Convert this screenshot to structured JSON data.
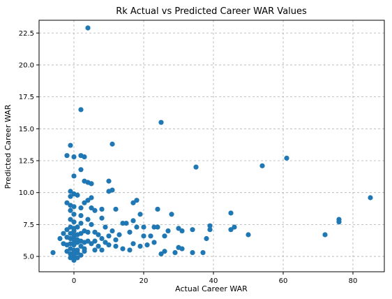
{
  "chart_data": {
    "type": "scatter",
    "title": "Rk Actual vs Predicted Career WAR Values",
    "xlabel": "Actual Career WAR",
    "ylabel": "Predicted Career WAR",
    "xlim": [
      -10,
      89
    ],
    "ylim": [
      3.8,
      23.5
    ],
    "xticks": [
      0,
      20,
      40,
      60,
      80
    ],
    "xtick_labels": [
      "0",
      "20",
      "40",
      "60",
      "80"
    ],
    "yticks": [
      5.0,
      7.5,
      10.0,
      12.5,
      15.0,
      17.5,
      20.0,
      22.5
    ],
    "ytick_labels": [
      "5.0",
      "7.5",
      "10.0",
      "12.5",
      "15.0",
      "17.5",
      "20.0",
      "22.5"
    ],
    "grid": true,
    "marker_color": "#1f77b4",
    "points": [
      [
        4,
        22.9
      ],
      [
        2,
        16.5
      ],
      [
        25,
        15.5
      ],
      [
        11,
        13.8
      ],
      [
        -1,
        13.7
      ],
      [
        -2,
        12.9
      ],
      [
        2,
        12.9
      ],
      [
        3,
        12.8
      ],
      [
        0,
        12.8
      ],
      [
        2,
        11.8
      ],
      [
        0,
        11.3
      ],
      [
        35,
        12.0
      ],
      [
        54,
        12.1
      ],
      [
        61,
        12.7
      ],
      [
        10,
        10.9
      ],
      [
        3,
        10.9
      ],
      [
        4,
        10.8
      ],
      [
        5,
        10.7
      ],
      [
        11,
        10.2
      ],
      [
        10,
        10.1
      ],
      [
        -1,
        10.1
      ],
      [
        0,
        9.9
      ],
      [
        1,
        9.8
      ],
      [
        -1,
        9.7
      ],
      [
        5,
        9.6
      ],
      [
        4,
        9.4
      ],
      [
        18,
        9.4
      ],
      [
        17,
        9.2
      ],
      [
        -2,
        9.2
      ],
      [
        3,
        9.2
      ],
      [
        -1,
        9.0
      ],
      [
        0,
        8.9
      ],
      [
        2,
        8.8
      ],
      [
        5,
        8.8
      ],
      [
        6,
        8.6
      ],
      [
        -1,
        8.6
      ],
      [
        8,
        8.7
      ],
      [
        12,
        8.7
      ],
      [
        24,
        8.7
      ],
      [
        19,
        8.3
      ],
      [
        28,
        8.3
      ],
      [
        45,
        8.4
      ],
      [
        85,
        9.6
      ],
      [
        76,
        7.9
      ],
      [
        76,
        7.7
      ],
      [
        72,
        6.7
      ],
      [
        50,
        6.7
      ],
      [
        46,
        7.3
      ],
      [
        45,
        7.1
      ],
      [
        39,
        7.4
      ],
      [
        39,
        7.1
      ],
      [
        38,
        6.4
      ],
      [
        37,
        5.3
      ],
      [
        34,
        5.3
      ],
      [
        34,
        7.1
      ],
      [
        31,
        7.0
      ],
      [
        30,
        7.2
      ],
      [
        30,
        5.7
      ],
      [
        29,
        5.3
      ],
      [
        27,
        7.0
      ],
      [
        26,
        6.6
      ],
      [
        25,
        5.2
      ],
      [
        24,
        7.3
      ],
      [
        23,
        7.3
      ],
      [
        22,
        6.6
      ],
      [
        20,
        7.3
      ],
      [
        20,
        6.6
      ],
      [
        19,
        5.8
      ],
      [
        18,
        7.3
      ],
      [
        17,
        7.8
      ],
      [
        17,
        6.0
      ],
      [
        16,
        6.9
      ],
      [
        15,
        7.6
      ],
      [
        14,
        7.6
      ],
      [
        13,
        6.7
      ],
      [
        12,
        5.8
      ],
      [
        11,
        7.0
      ],
      [
        10,
        6.6
      ],
      [
        10,
        5.9
      ],
      [
        9,
        7.3
      ],
      [
        8,
        8.0
      ],
      [
        8,
        6.4
      ],
      [
        7,
        6.7
      ],
      [
        6,
        6.9
      ],
      [
        6,
        5.5
      ],
      [
        5,
        7.5
      ],
      [
        5,
        6.0
      ],
      [
        4,
        7.9
      ],
      [
        4,
        6.2
      ],
      [
        3,
        7.0
      ],
      [
        3,
        5.4
      ],
      [
        2,
        8.2
      ],
      [
        2,
        6.8
      ],
      [
        2,
        5.8
      ],
      [
        1,
        7.3
      ],
      [
        1,
        6.7
      ],
      [
        1,
        6.1
      ],
      [
        1,
        5.3
      ],
      [
        0,
        8.3
      ],
      [
        0,
        7.7
      ],
      [
        0,
        7.2
      ],
      [
        0,
        6.7
      ],
      [
        0,
        6.3
      ],
      [
        0,
        5.9
      ],
      [
        0,
        5.5
      ],
      [
        0,
        5.1
      ],
      [
        0,
        4.8
      ],
      [
        -1,
        7.9
      ],
      [
        -1,
        7.3
      ],
      [
        -1,
        6.8
      ],
      [
        -1,
        6.4
      ],
      [
        -1,
        6.0
      ],
      [
        -1,
        5.6
      ],
      [
        -1,
        5.2
      ],
      [
        -2,
        7.1
      ],
      [
        -2,
        6.5
      ],
      [
        -2,
        5.9
      ],
      [
        -2,
        5.4
      ],
      [
        -3,
        6.8
      ],
      [
        -3,
        6.0
      ],
      [
        -4,
        6.4
      ],
      [
        -6,
        5.3
      ],
      [
        0,
        4.7
      ],
      [
        1,
        4.9
      ],
      [
        2,
        5.1
      ],
      [
        3,
        5.6
      ],
      [
        -1,
        4.9
      ],
      [
        0,
        5.3
      ],
      [
        1,
        5.5
      ],
      [
        0,
        6.0
      ],
      [
        0,
        6.5
      ],
      [
        0,
        7.0
      ],
      [
        1,
        6.3
      ],
      [
        2,
        6.2
      ],
      [
        3,
        6.1
      ],
      [
        2,
        7.6
      ],
      [
        4,
        6.9
      ],
      [
        6,
        6.2
      ],
      [
        7,
        5.8
      ],
      [
        8,
        5.5
      ],
      [
        9,
        6.1
      ],
      [
        12,
        6.3
      ],
      [
        14,
        5.6
      ],
      [
        16,
        5.5
      ],
      [
        21,
        5.9
      ],
      [
        23,
        6.1
      ],
      [
        26,
        5.4
      ],
      [
        31,
        5.6
      ]
    ]
  }
}
